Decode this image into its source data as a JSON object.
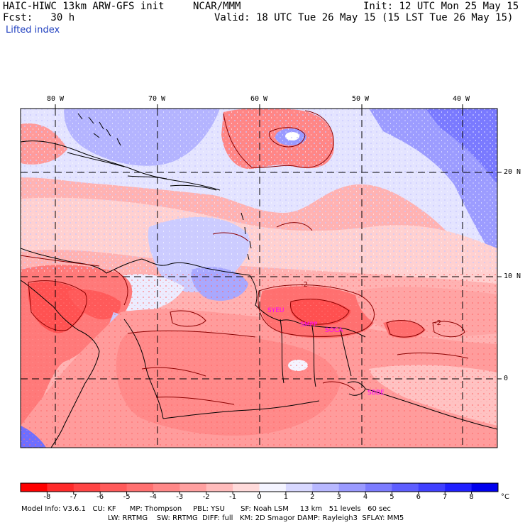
{
  "header": {
    "model": "HAIC-HIWC 13km ARW-GFS init",
    "org": "NCAR/MMM",
    "init": "Init: 12 UTC Mon 25 May 15",
    "fcst": "Fcst:   30 h",
    "valid": "Valid: 18 UTC Tue 26 May 15 (15 LST Tue 26 May 15)",
    "field": "Lifted index"
  },
  "axes": {
    "lon_labels": [
      "80 W",
      "70 W",
      "60 W",
      "50 W",
      "40 W"
    ],
    "lat_labels": [
      "20 N",
      "10 N",
      "0"
    ]
  },
  "contour_labels": [
    "-2",
    "-2"
  ],
  "sites": [
    "SYEU",
    "SMPP",
    "SOCA",
    "SBBE"
  ],
  "colorbar": {
    "labels": [
      "-8",
      "-7",
      "-6",
      "-5",
      "-4",
      "-3",
      "-2",
      "-1",
      "0",
      "1",
      "2",
      "3",
      "4",
      "5",
      "6",
      "7",
      "8"
    ],
    "unit": "°C",
    "colors": [
      "#ff0000",
      "#ff2a2a",
      "#ff4444",
      "#ff5a5a",
      "#ff7070",
      "#ff8888",
      "#ffa0a0",
      "#ffbcbc",
      "#ffdada",
      "#f4f4ff",
      "#d8d8ff",
      "#b8b8ff",
      "#9a9aff",
      "#7c7cff",
      "#5e5eff",
      "#4040ff",
      "#2020ff",
      "#0000ee"
    ]
  },
  "footer": {
    "line1": "Model Info: V3.6.1   CU: KF      MP: Thompson     PBL: YSU       SF: Noah LSM     13 km   51 levels   60 sec",
    "line2": "LW: RRTMG    SW: RRTMG  DIFF: full   KM: 2D Smagor DAMP: Rayleigh3  SFLAY: MM5"
  }
}
